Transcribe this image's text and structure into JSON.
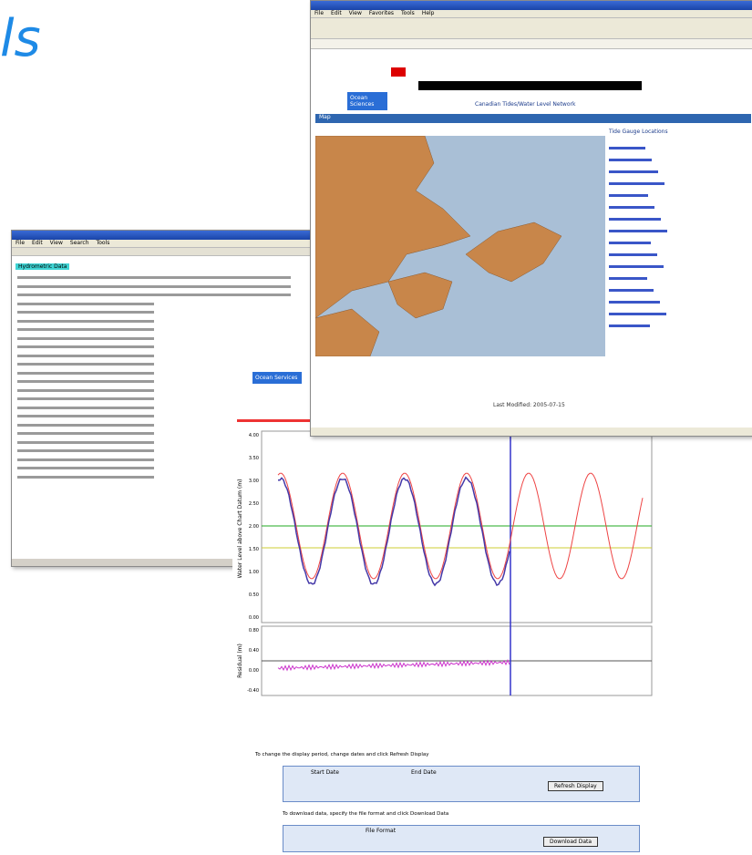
{
  "heading": "ls",
  "notepad": {
    "menu": [
      "File",
      "Edit",
      "View",
      "Search",
      "Tools"
    ],
    "tab": "Hydrometric Data"
  },
  "chart_window": {
    "badge": "Ocean Services",
    "y_axis_label": "Water Level above Chart Datum (m)",
    "residual_label": "Residual (m)",
    "yticks": [
      "4.00",
      "3.50",
      "3.00",
      "2.50",
      "2.00",
      "1.50",
      "1.00",
      "0.50",
      "0.00"
    ],
    "residual_ticks": [
      "0.80",
      "0.40",
      "0.00",
      "-0.40"
    ],
    "form": {
      "prompt": "To change the display period, change dates and click Refresh Display",
      "start": "Start Date",
      "end": "End Date",
      "refresh": "Refresh Display",
      "prompt2": "To download data, specify the file format and click Download Data",
      "format": "File Format",
      "download": "Download Data"
    }
  },
  "browser": {
    "menu": [
      "File",
      "Edit",
      "View",
      "Favorites",
      "Tools",
      "Help"
    ],
    "badge": "Ocean Sciences",
    "header": "Canadian Tides/Water Level Network",
    "map_tab": "Map",
    "side_title": "Tide Gauge Locations",
    "updated": "Last Modified: 2005-07-15"
  }
}
